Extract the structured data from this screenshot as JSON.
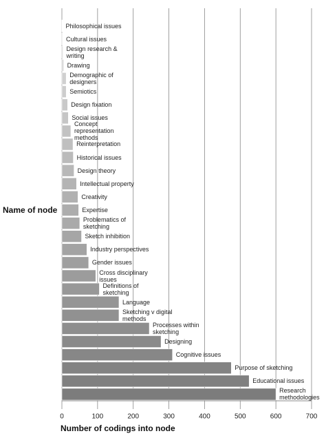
{
  "chart_data": {
    "type": "barh",
    "xlabel": "Number of codings into node",
    "ylabel": "Name of node",
    "categories": [
      "Philosophical issues",
      "Cultural issues",
      "Design research & writing",
      "Drawing",
      "Demographic of designers",
      "Semiotics",
      "Design fixation",
      "Social issues",
      "Concept representation methods",
      "Reinterpretation",
      "Historical issues",
      "Design theory",
      "Intellectual property",
      "Creativity",
      "Expertise",
      "Problematics of sketching",
      "Sketch inhibition",
      "Industry perspectives",
      "Gender issues",
      "Cross disciplinary issues",
      "Definitions of sketching",
      "Language",
      "Sketching v digital methods",
      "Processes within sketching",
      "Designing",
      "Cognitive issues",
      "Purpose of sketching",
      "Educational issues",
      "Research methodologies"
    ],
    "values": [
      1,
      2,
      3,
      5,
      12,
      12,
      16,
      18,
      25,
      31,
      32,
      34,
      41,
      45,
      47,
      50,
      55,
      70,
      75,
      95,
      105,
      160,
      160,
      245,
      278,
      310,
      475,
      525,
      600
    ],
    "color_gradient": [
      "#dedede",
      "#7c7c7c"
    ],
    "xlim": [
      0,
      700
    ],
    "xticks": [
      0,
      100,
      200,
      300,
      400,
      500,
      600,
      700
    ],
    "grid": true
  }
}
